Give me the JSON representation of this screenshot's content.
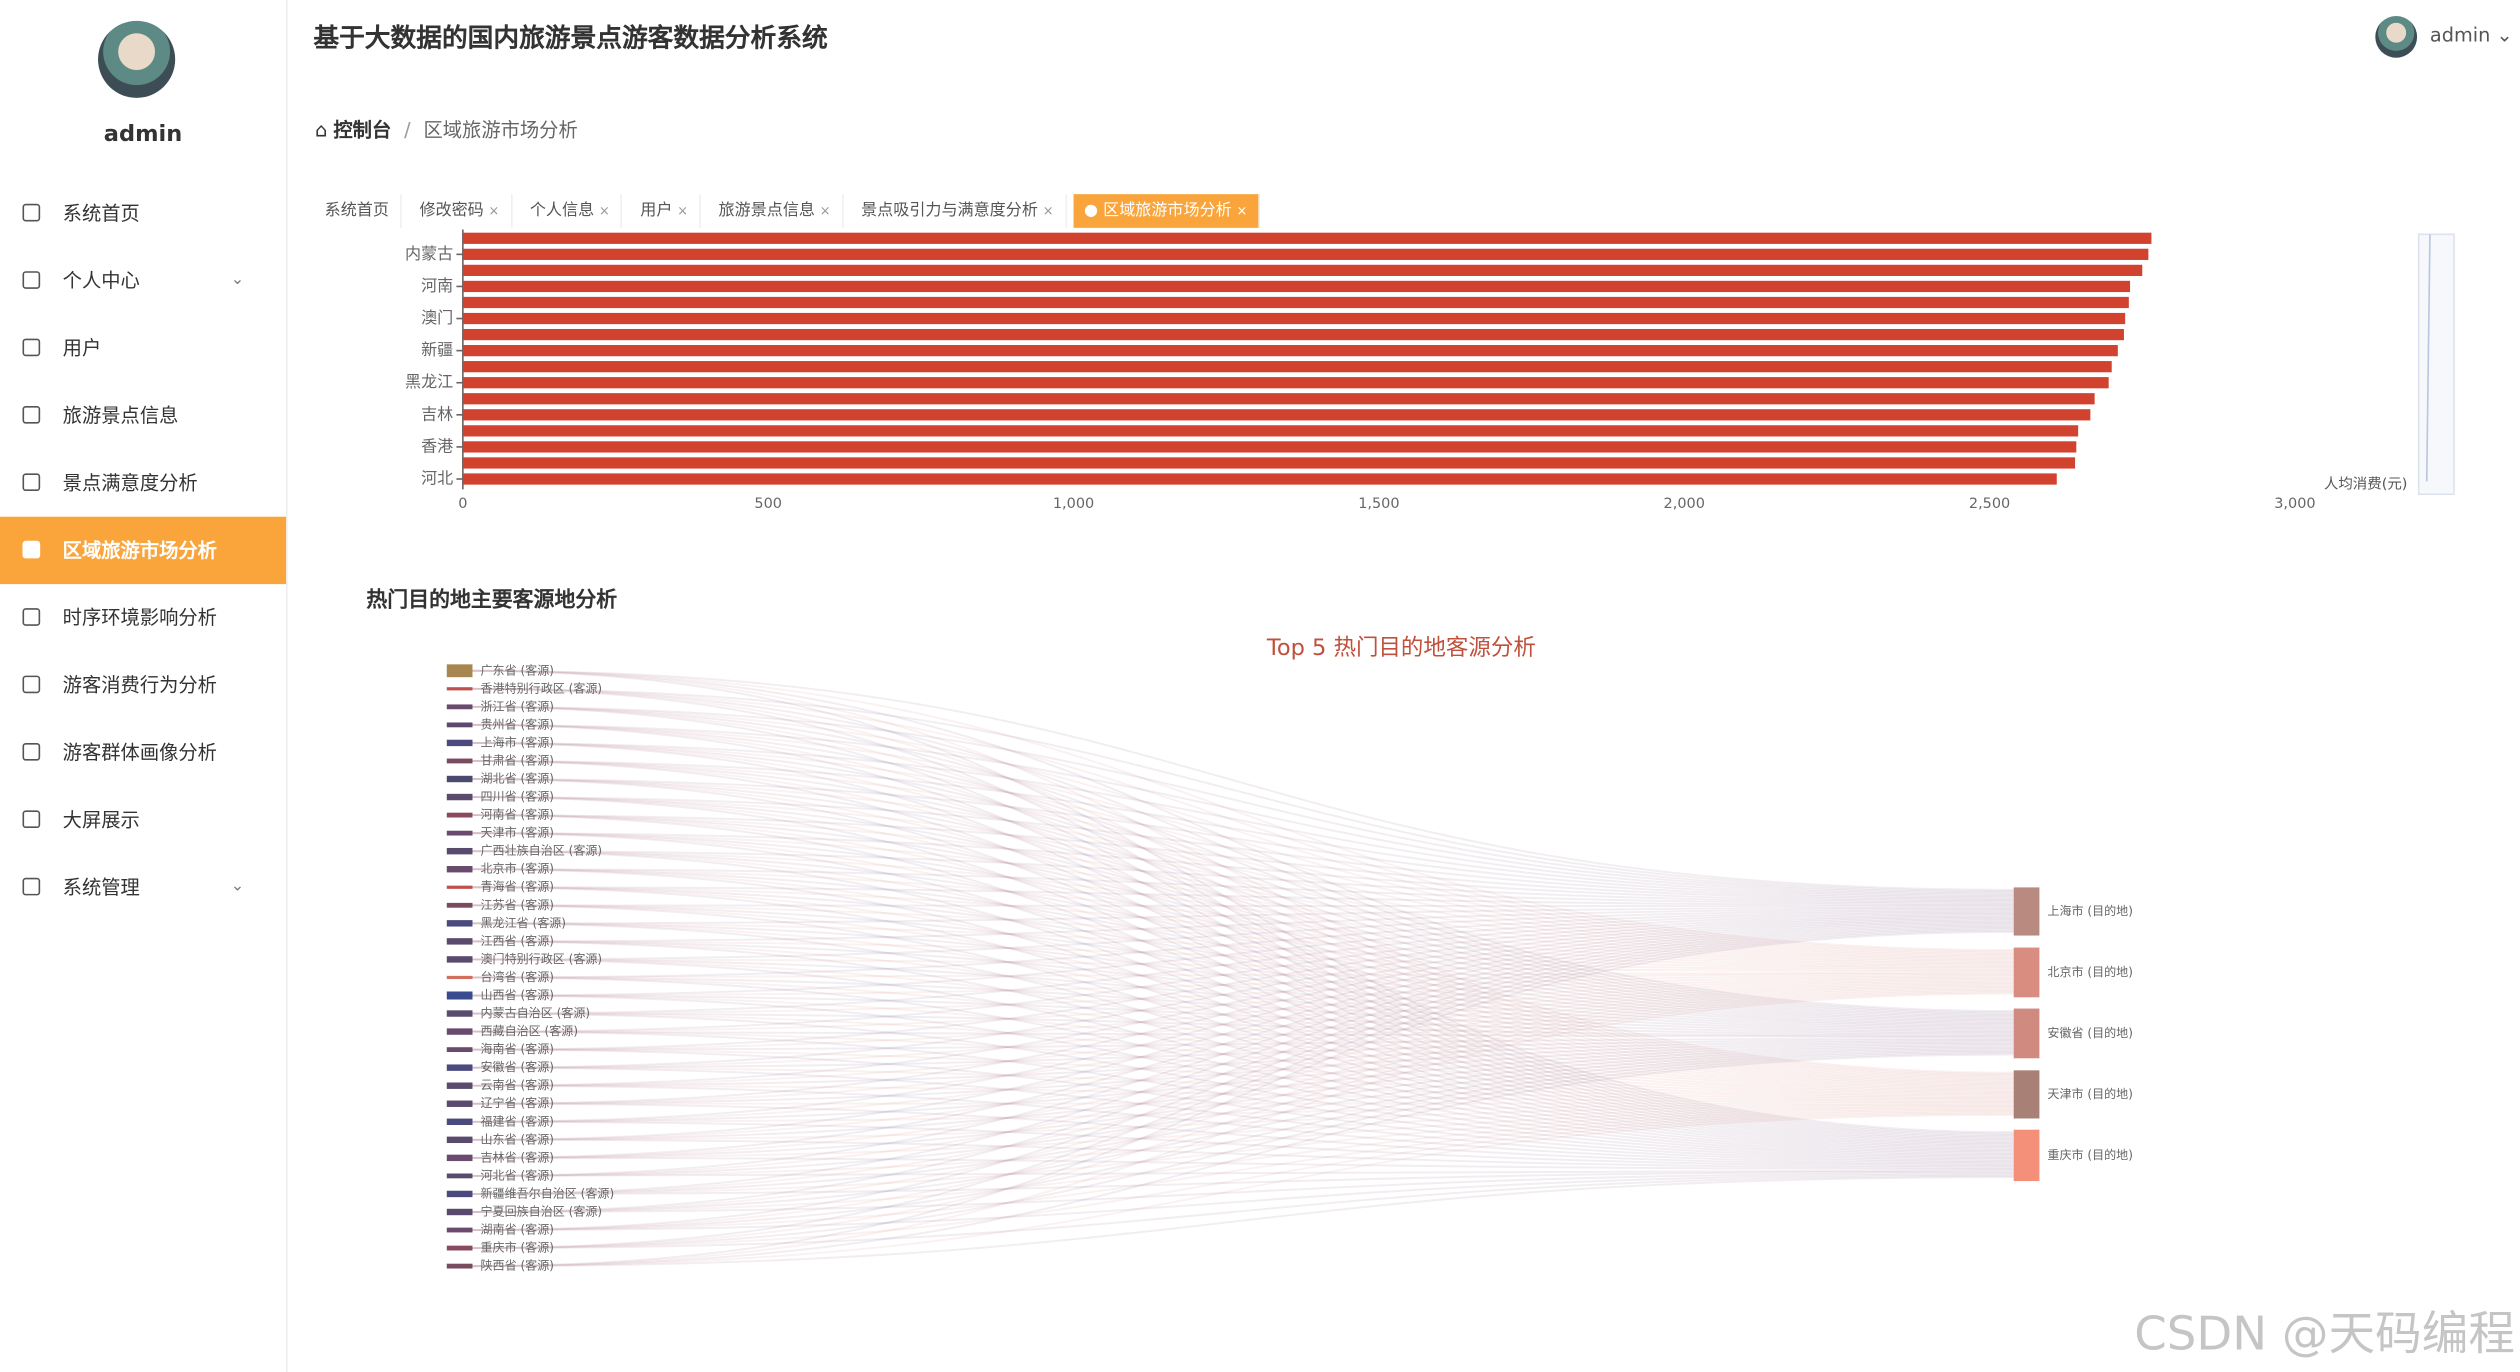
{
  "header": {
    "title": "基于大数据的国内旅游景点游客数据分析系统",
    "user": "admin"
  },
  "sidebar": {
    "username": "admin",
    "menu": [
      "系统首页",
      "个人中心",
      "用户",
      "旅游景点信息",
      "景点满意度分析",
      "区域旅游市场分析",
      "时序环境影响分析",
      "游客消费行为分析",
      "游客群体画像分析",
      "大屏展示",
      "系统管理"
    ],
    "expandable": [
      1,
      10
    ],
    "active": 5
  },
  "breadcrumb": [
    "控制台",
    "区域旅游市场分析"
  ],
  "tabs": [
    "系统首页",
    "修改密码",
    "个人信息",
    "用户",
    "旅游景点信息",
    "景点吸引力与满意度分析",
    "区域旅游市场分析"
  ],
  "active_tab": 6,
  "section_title": "热门目的地主要客源地分析",
  "watermark": "CSDN @天码编程",
  "chart_data": [
    {
      "type": "bar",
      "orientation": "horizontal",
      "categories": [
        null,
        "内蒙古",
        null,
        "河南",
        null,
        "澳门",
        null,
        "新疆",
        null,
        "黑龙江",
        null,
        "吉林",
        null,
        "香港",
        null,
        "河北"
      ],
      "series": [
        {
          "name": "人均消费(元)",
          "color": "#d2432f",
          "values": [
            2765,
            2760,
            2750,
            2730,
            2728,
            2722,
            2720,
            2710,
            2700,
            2695,
            2672,
            2665,
            2645,
            2642,
            2640,
            2610
          ]
        }
      ],
      "xlim": [
        0,
        3000
      ],
      "xticks": [
        0,
        500,
        {
          "value": 1000,
          "label": "1,000"
        },
        {
          "value": 1500,
          "label": "1,500"
        },
        {
          "value": 2000,
          "label": "2,000"
        },
        {
          "value": 2500,
          "label": "2,500"
        },
        {
          "value": 3000,
          "label": "3,000"
        }
      ],
      "legend": "bottom-right"
    },
    {
      "type": "sankey",
      "title": "Top 5 热门目的地客源分析",
      "sources": [
        {
          "name": "广东省 (客源)",
          "value": 8,
          "color": "#a8864f"
        },
        {
          "name": "香港特别行政区 (客源)",
          "value": 2,
          "color": "#c0504d"
        },
        {
          "name": "浙江省 (客源)",
          "value": 3,
          "color": "#6a4a6e"
        },
        {
          "name": "贵州省 (客源)",
          "value": 3,
          "color": "#5a4a6e"
        },
        {
          "name": "上海市 (客源)",
          "value": 4,
          "color": "#4a4a7e"
        },
        {
          "name": "甘肃省 (客源)",
          "value": 3,
          "color": "#7a4a5e"
        },
        {
          "name": "湖北省 (客源)",
          "value": 4,
          "color": "#4a4a6e"
        },
        {
          "name": "四川省 (客源)",
          "value": 4,
          "color": "#5a4a6e"
        },
        {
          "name": "河南省 (客源)",
          "value": 3,
          "color": "#8a4a5e"
        },
        {
          "name": "天津市 (客源)",
          "value": 3,
          "color": "#6a4a6e"
        },
        {
          "name": "广西壮族自治区 (客源)",
          "value": 4,
          "color": "#5a4a6e"
        },
        {
          "name": "北京市 (客源)",
          "value": 4,
          "color": "#6a4a6e"
        },
        {
          "name": "青海省 (客源)",
          "value": 2,
          "color": "#c0504d"
        },
        {
          "name": "江苏省 (客源)",
          "value": 3,
          "color": "#7a4a5e"
        },
        {
          "name": "黑龙江省 (客源)",
          "value": 4,
          "color": "#4a4a7e"
        },
        {
          "name": "江西省 (客源)",
          "value": 4,
          "color": "#5a4a6e"
        },
        {
          "name": "澳门特别行政区 (客源)",
          "value": 4,
          "color": "#5a4a6e"
        },
        {
          "name": "台湾省 (客源)",
          "value": 2,
          "color": "#d0705d"
        },
        {
          "name": "山西省 (客源)",
          "value": 5,
          "color": "#3a4a8e"
        },
        {
          "name": "内蒙古自治区 (客源)",
          "value": 4,
          "color": "#5a4a6e"
        },
        {
          "name": "西藏自治区 (客源)",
          "value": 4,
          "color": "#6a4a6e"
        },
        {
          "name": "海南省 (客源)",
          "value": 3,
          "color": "#6a4a6e"
        },
        {
          "name": "安徽省 (客源)",
          "value": 4,
          "color": "#4a4a7e"
        },
        {
          "name": "云南省 (客源)",
          "value": 4,
          "color": "#5a4a6e"
        },
        {
          "name": "辽宁省 (客源)",
          "value": 4,
          "color": "#5a4a6e"
        },
        {
          "name": "福建省 (客源)",
          "value": 4,
          "color": "#4a4a7e"
        },
        {
          "name": "山东省 (客源)",
          "value": 4,
          "color": "#5a4a6e"
        },
        {
          "name": "吉林省 (客源)",
          "value": 4,
          "color": "#6a4a6e"
        },
        {
          "name": "河北省 (客源)",
          "value": 3,
          "color": "#5a4a6e"
        },
        {
          "name": "新疆维吾尔自治区 (客源)",
          "value": 4,
          "color": "#4a4a7e"
        },
        {
          "name": "宁夏回族自治区 (客源)",
          "value": 4,
          "color": "#5a4a6e"
        },
        {
          "name": "湖南省 (客源)",
          "value": 3,
          "color": "#6a4a6e"
        },
        {
          "name": "重庆市 (客源)",
          "value": 3,
          "color": "#8a4a5e"
        },
        {
          "name": "陕西省 (客源)",
          "value": 3,
          "color": "#7a4a5e"
        }
      ],
      "targets": [
        {
          "name": "上海市 (目的地)",
          "value": 30,
          "color": "#b98a80"
        },
        {
          "name": "北京市 (目的地)",
          "value": 31,
          "color": "#d98c80"
        },
        {
          "name": "安徽省 (目的地)",
          "value": 31,
          "color": "#d08a80"
        },
        {
          "name": "天津市 (目的地)",
          "value": 30,
          "color": "#a98076"
        },
        {
          "name": "重庆市 (目的地)",
          "value": 32,
          "color": "#f4907a"
        }
      ]
    }
  ]
}
